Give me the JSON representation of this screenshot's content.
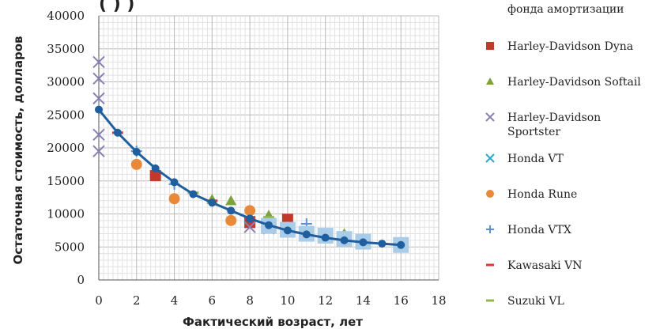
{
  "chart_data": {
    "type": "scatter",
    "title_fragment": "( ) )",
    "xlabel": "Фактический возраст, лет",
    "ylabel": "Остаточная стоимость, долларов",
    "xlim": [
      0,
      18
    ],
    "ylim": [
      0,
      40000
    ],
    "x_ticks": [
      "0",
      "2",
      "4",
      "6",
      "8",
      "10",
      "12",
      "14",
      "16",
      "18"
    ],
    "y_ticks": [
      "0",
      "5000",
      "10000",
      "15000",
      "20000",
      "25000",
      "30000",
      "35000",
      "40000"
    ],
    "grid": true,
    "legend_position": "right",
    "series": [
      {
        "name": "фонда амортизации",
        "marker": "line-dot",
        "color": "#1f5f9e",
        "points": [
          [
            0,
            25800
          ],
          [
            1,
            22300
          ],
          [
            2,
            19400
          ],
          [
            3,
            16900
          ],
          [
            4,
            14800
          ],
          [
            5,
            13000
          ],
          [
            6,
            11700
          ],
          [
            7,
            10500
          ],
          [
            8,
            9300
          ],
          [
            9,
            8300
          ],
          [
            10,
            7500
          ],
          [
            11,
            6900
          ],
          [
            12,
            6400
          ],
          [
            13,
            6000
          ],
          [
            14,
            5700
          ],
          [
            15,
            5500
          ],
          [
            16,
            5300
          ]
        ]
      },
      {
        "name": "Harley-Davidson Dyna",
        "marker": "square",
        "color": "#c0392b",
        "points": [
          [
            3,
            15800
          ],
          [
            8,
            8700
          ],
          [
            10,
            9200
          ]
        ]
      },
      {
        "name": "Harley-Davidson Softail",
        "marker": "triangle",
        "color": "#7ea33b",
        "points": [
          [
            6,
            12200
          ],
          [
            7,
            12000
          ],
          [
            9,
            9800
          ],
          [
            13,
            7000
          ]
        ]
      },
      {
        "name": "Harley-Davidson Sportster",
        "marker": "x",
        "color": "#8a7fb5",
        "points": [
          [
            0,
            33000
          ],
          [
            0,
            30500
          ],
          [
            0,
            27500
          ],
          [
            0,
            22000
          ],
          [
            0,
            19500
          ],
          [
            8,
            8000
          ],
          [
            14,
            6000
          ]
        ]
      },
      {
        "name": "Honda  VT",
        "marker": "x",
        "color": "#2aa9c9",
        "points": [
          [
            16,
            5300
          ],
          [
            12,
            6500
          ],
          [
            9,
            7800
          ]
        ]
      },
      {
        "name": "Honda Rune",
        "marker": "circle",
        "color": "#e8893a",
        "points": [
          [
            2,
            17500
          ],
          [
            4,
            12300
          ],
          [
            7,
            9000
          ],
          [
            8,
            10500
          ],
          [
            10,
            8000
          ]
        ]
      },
      {
        "name": "Honda VTX",
        "marker": "plus",
        "color": "#5b8fd6",
        "points": [
          [
            2,
            19500
          ],
          [
            4,
            14500
          ],
          [
            11,
            8500
          ],
          [
            13,
            6000
          ]
        ]
      },
      {
        "name": "Kawasaki VN",
        "marker": "dash",
        "color": "#d63a3a",
        "points": [
          [
            1,
            22300
          ],
          [
            6,
            12000
          ],
          [
            8,
            9500
          ],
          [
            12,
            5800
          ]
        ]
      },
      {
        "name": "Suzuki VL",
        "marker": "dash",
        "color": "#93b84a",
        "points": [
          [
            5,
            13200
          ],
          [
            9,
            9500
          ],
          [
            12,
            7000
          ]
        ]
      },
      {
        "name": "",
        "marker": "square",
        "color": "#a9cce8",
        "points": [
          [
            9,
            8200
          ],
          [
            10,
            7600
          ],
          [
            11,
            7000
          ],
          [
            12,
            6700
          ],
          [
            13,
            6200
          ],
          [
            14,
            5800
          ],
          [
            16,
            5300
          ]
        ]
      }
    ]
  }
}
